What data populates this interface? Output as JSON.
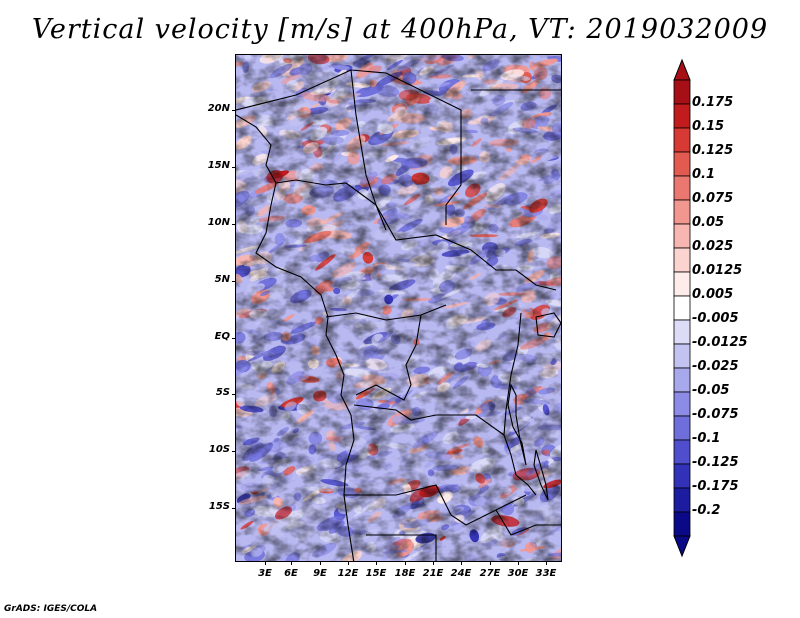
{
  "title": "Vertical velocity [m/s] at 400hPa, VT: 2019032009",
  "latitude_labels": [
    "20N",
    "15N",
    "10N",
    "5N",
    "EQ",
    "5S",
    "10S",
    "15S"
  ],
  "longitude_labels": [
    "3E",
    "6E",
    "9E",
    "12E",
    "15E",
    "18E",
    "21E",
    "24E",
    "27E",
    "30E",
    "33E"
  ],
  "colorbar": {
    "levels": [
      "0.175",
      "0.15",
      "0.125",
      "0.1",
      "0.075",
      "0.05",
      "0.025",
      "0.0125",
      "0.005",
      "-0.005",
      "-0.0125",
      "-0.025",
      "-0.05",
      "-0.075",
      "-0.1",
      "-0.125",
      "-0.175",
      "-0.2"
    ],
    "colors": [
      "#a50f15",
      "#c21b1e",
      "#d73a35",
      "#e25a50",
      "#ea7870",
      "#f29790",
      "#f7b6b0",
      "#fbd3cf",
      "#feecea",
      "#ffffff",
      "#dcdcf7",
      "#c3c3f2",
      "#a8a8ed",
      "#8c8ce6",
      "#6f6fdc",
      "#4f4fcd",
      "#3232b8",
      "#1c1ca0",
      "#0a0a88"
    ]
  },
  "footer": "GrADS: IGES/COLA"
}
